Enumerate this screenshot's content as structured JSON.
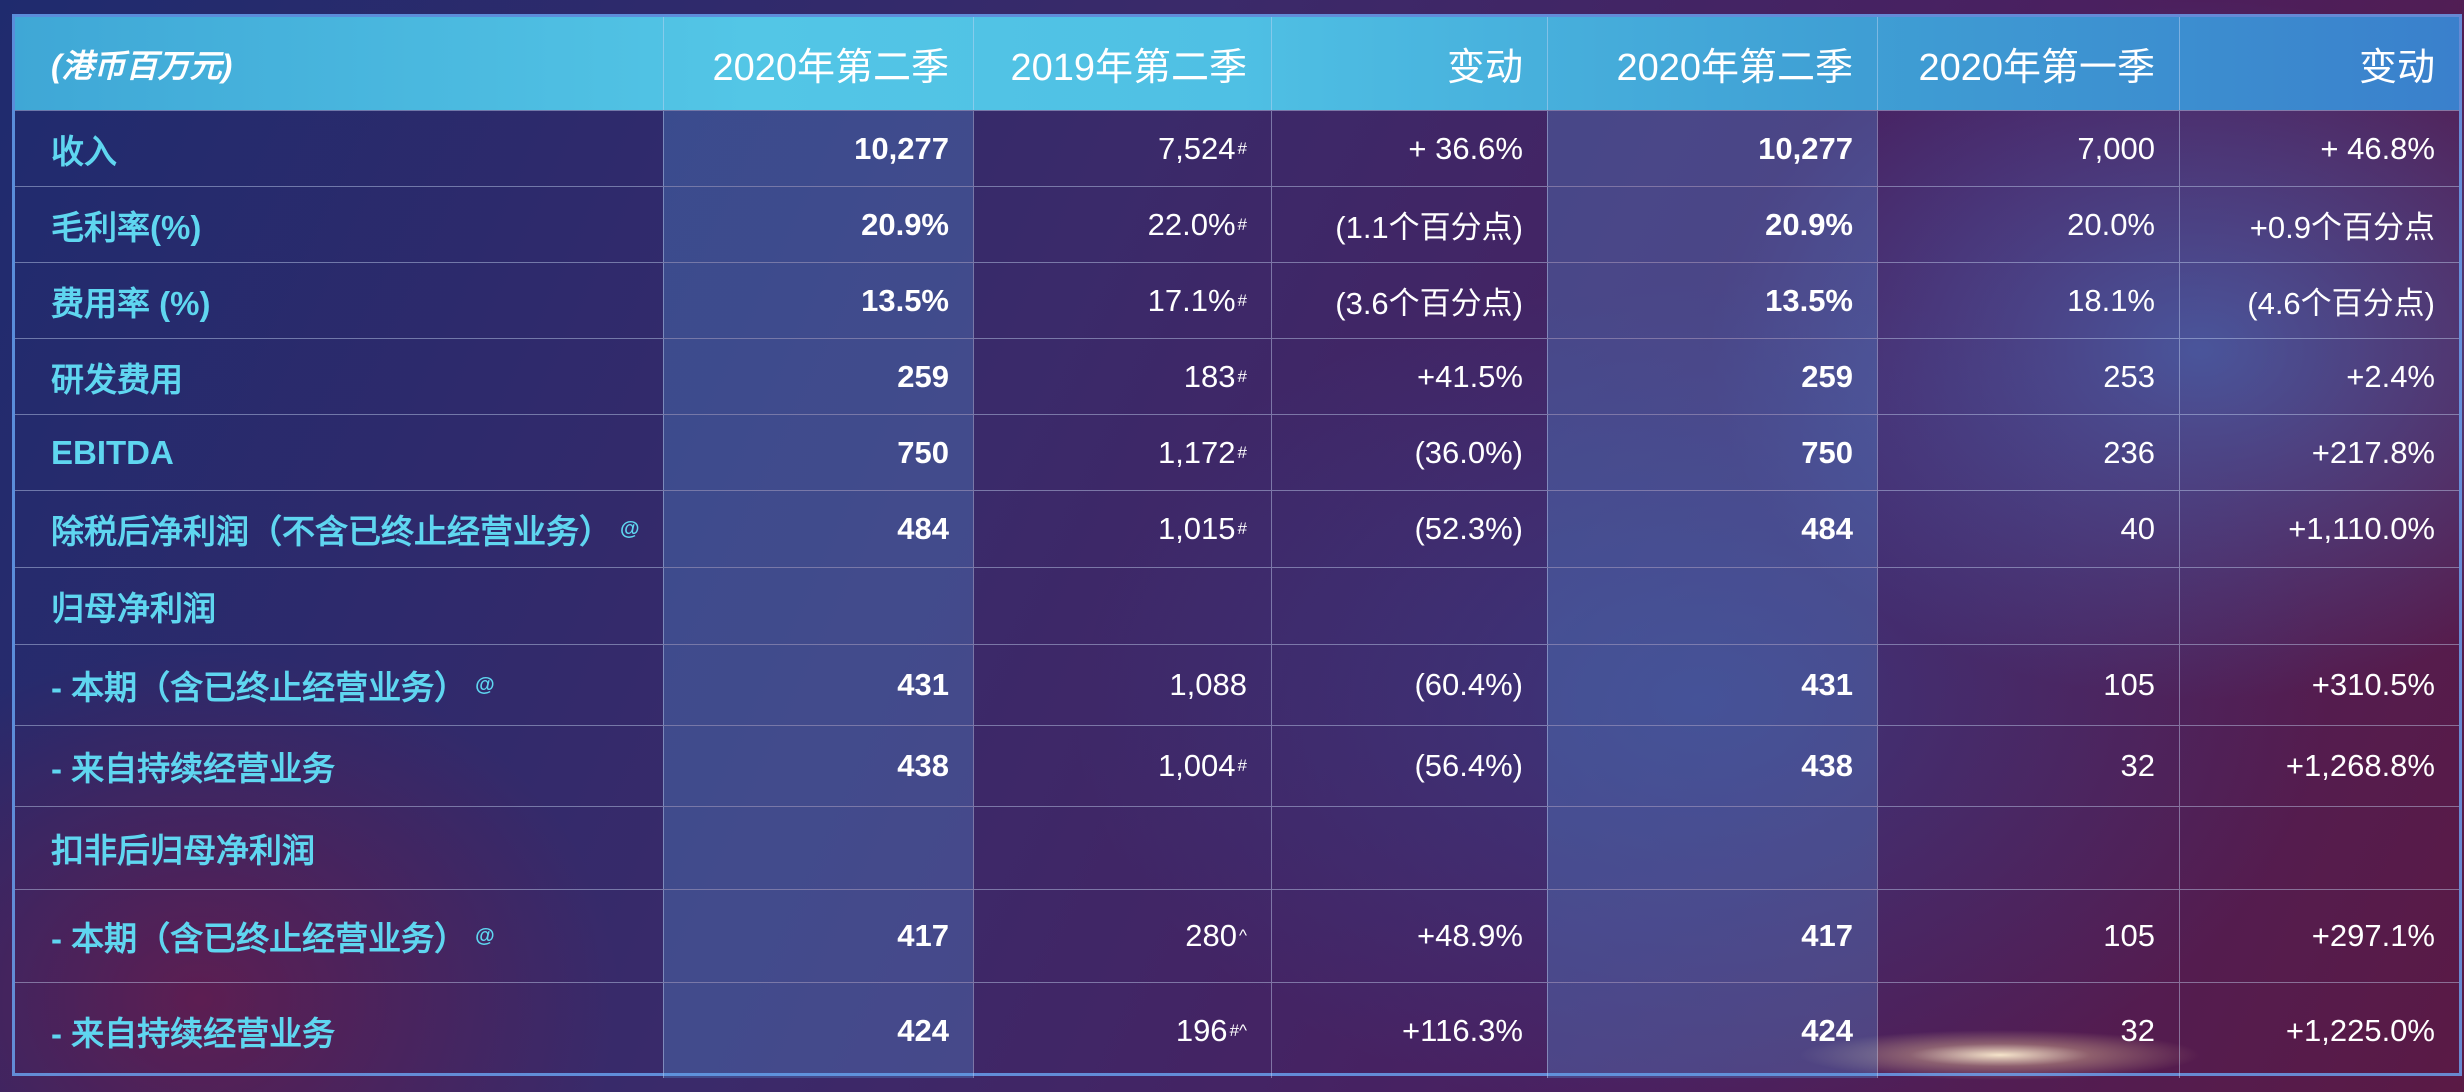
{
  "header": [
    "(港币百万元)",
    "2020年第二季",
    "2019年第二季",
    "变动",
    "2020年第二季",
    "2020年第一季",
    "变动"
  ],
  "rows": [
    {
      "label": "收入",
      "label_sup": "",
      "q2_2020": "10,277",
      "q2_2019": "7,524",
      "q2_2019_mark": "#",
      "yoy": "+ 36.6%",
      "q2_2020b": "10,277",
      "q1_2020": "7,000",
      "qoq": "+ 46.8%"
    },
    {
      "label": "毛利率(%)",
      "label_sup": "",
      "q2_2020": "20.9%",
      "q2_2019": "22.0%",
      "q2_2019_mark": "#",
      "yoy": "(1.1个百分点)",
      "q2_2020b": "20.9%",
      "q1_2020": "20.0%",
      "qoq": "+0.9个百分点"
    },
    {
      "label": "费用率 (%)",
      "label_sup": "",
      "q2_2020": "13.5%",
      "q2_2019": "17.1%",
      "q2_2019_mark": "#",
      "yoy": "(3.6个百分点)",
      "q2_2020b": "13.5%",
      "q1_2020": "18.1%",
      "qoq": "(4.6个百分点)"
    },
    {
      "label": "研发费用",
      "label_sup": "",
      "q2_2020": "259",
      "q2_2019": "183",
      "q2_2019_mark": "#",
      "yoy": "+41.5%",
      "q2_2020b": "259",
      "q1_2020": "253",
      "qoq": "+2.4%"
    },
    {
      "label": "EBITDA",
      "label_sup": "",
      "q2_2020": "750",
      "q2_2019": "1,172",
      "q2_2019_mark": "#",
      "yoy": "(36.0%)",
      "q2_2020b": "750",
      "q1_2020": "236",
      "qoq": "+217.8%"
    },
    {
      "label": "除税后净利润（不含已终止经营业务）",
      "label_sup": "@",
      "q2_2020": "484",
      "q2_2019": "1,015",
      "q2_2019_mark": "#",
      "yoy": "(52.3%)",
      "q2_2020b": "484",
      "q1_2020": "40",
      "qoq": "+1,110.0%"
    },
    {
      "label": "归母净利润",
      "label_sup": "",
      "q2_2020": "",
      "q2_2019": "",
      "q2_2019_mark": "",
      "yoy": "",
      "q2_2020b": "",
      "q1_2020": "",
      "qoq": ""
    },
    {
      "label": "- 本期（含已终止经营业务）",
      "label_sup": "@",
      "q2_2020": "431",
      "q2_2019": "1,088",
      "q2_2019_mark": "",
      "yoy": "(60.4%)",
      "q2_2020b": "431",
      "q1_2020": "105",
      "qoq": "+310.5%"
    },
    {
      "label": "- 来自持续经营业务",
      "label_sup": "",
      "q2_2020": "438",
      "q2_2019": "1,004",
      "q2_2019_mark": "#",
      "yoy": "(56.4%)",
      "q2_2020b": "438",
      "q1_2020": "32",
      "qoq": "+1,268.8%"
    },
    {
      "label": "扣非后归母净利润",
      "label_sup": "",
      "q2_2020": "",
      "q2_2019": "",
      "q2_2019_mark": "",
      "yoy": "",
      "q2_2020b": "",
      "q1_2020": "",
      "qoq": ""
    },
    {
      "label": "- 本期（含已终止经营业务）",
      "label_sup": "@",
      "q2_2020": "417",
      "q2_2019": "280",
      "q2_2019_mark": "^",
      "yoy": "+48.9%",
      "q2_2020b": "417",
      "q1_2020": "105",
      "qoq": "+297.1%"
    },
    {
      "label": "- 来自持续经营业务",
      "label_sup": "",
      "q2_2020": "424",
      "q2_2019": "196",
      "q2_2019_mark": "#^",
      "yoy": "+116.3%",
      "q2_2020b": "424",
      "q1_2020": "32",
      "qoq": "+1,225.0%"
    }
  ]
}
